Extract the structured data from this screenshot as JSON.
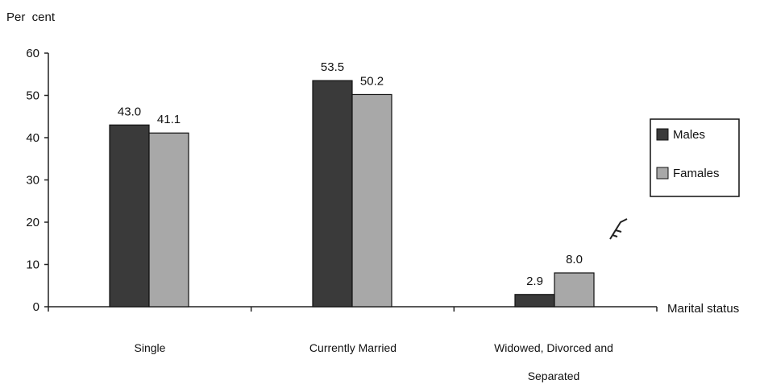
{
  "chart_data": {
    "type": "bar",
    "ylabel": "Per  cent",
    "xlabel": "Marital status",
    "ylim": [
      0,
      60
    ],
    "yticks": [
      0,
      10,
      20,
      30,
      40,
      50,
      60
    ],
    "categories": [
      [
        "Single"
      ],
      [
        "Currently Married"
      ],
      [
        "Widowed,  Divorced and",
        "Separated"
      ]
    ],
    "series": [
      {
        "name": "Males",
        "values": [
          43.0,
          53.5,
          2.9
        ],
        "labels": [
          "43.0",
          "53.5",
          "2.9"
        ],
        "color": "#3a3a3a"
      },
      {
        "name": "Famales",
        "values": [
          41.1,
          50.2,
          8.0
        ],
        "labels": [
          "41.1",
          "50.2",
          "8.0"
        ],
        "color": "#a8a8a8"
      }
    ],
    "legend_position": "right",
    "grid": false
  }
}
